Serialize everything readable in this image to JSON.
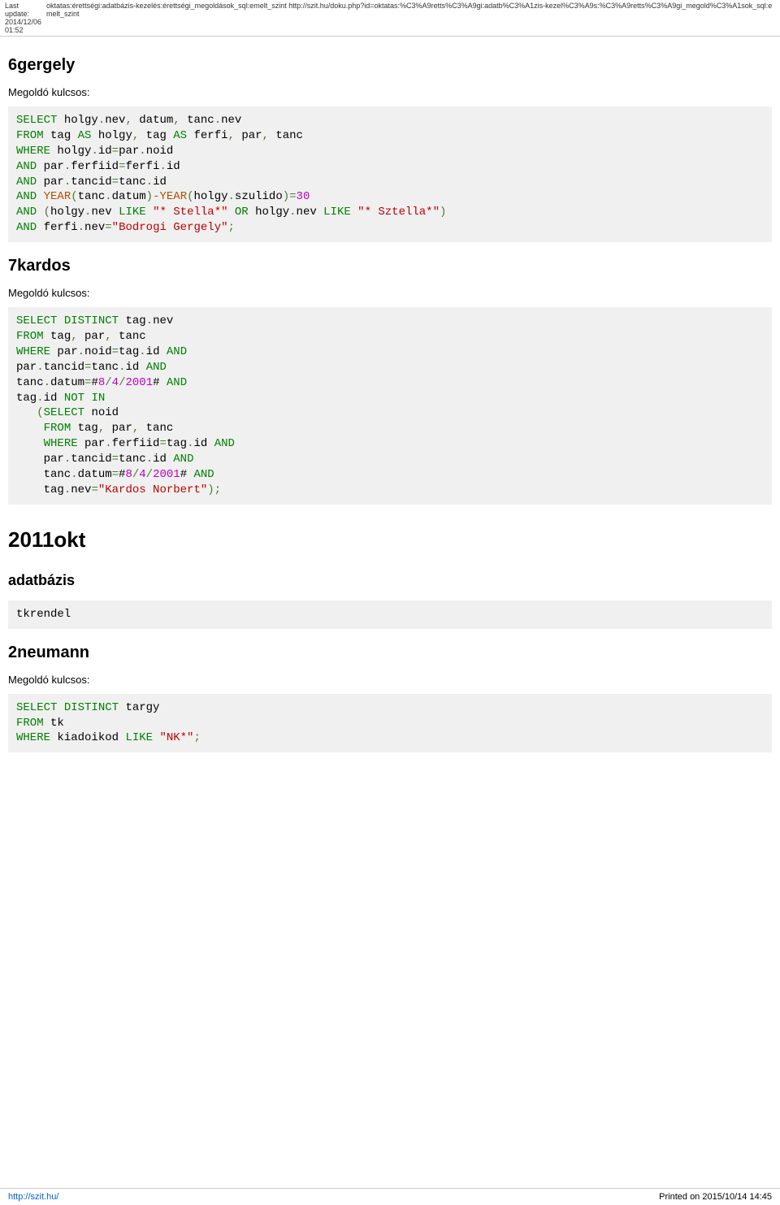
{
  "header": {
    "last_update_label": "Last\nupdate:",
    "last_update_value": "2014/12/06\n01:52",
    "breadcrumb": "oktatas:érettségi:adatbázis-kezelés:érettségi_megoldások_sql:emelt_szint http://szit.hu/doku.php?id=oktatas:%C3%A9retts%C3%A9gi:adatb%C3%A1zis-kezel%C3%A9s:%C3%A9retts%C3%A9gi_megold%C3%A1sok_sql:emelt_szint"
  },
  "sections": {
    "s1": {
      "title": "6gergely",
      "subtitle": "Megoldó kulcsos:"
    },
    "s2": {
      "title": "7kardos",
      "subtitle": "Megoldó kulcsos:"
    },
    "s3": {
      "title": "2011okt"
    },
    "s4": {
      "title": "adatbázis",
      "subsection": "tkrendel"
    },
    "s5": {
      "title": "2neumann",
      "subtitle": "Megoldó kulcsos:"
    }
  },
  "code": {
    "c1": {
      "tokens": [
        [
          "k-select",
          "SELECT"
        ],
        [
          "ident",
          " holgy"
        ],
        [
          "punct",
          "."
        ],
        [
          "ident",
          "nev"
        ],
        [
          "punct",
          ","
        ],
        [
          "ident",
          " datum"
        ],
        [
          "punct",
          ","
        ],
        [
          "ident",
          " tanc"
        ],
        [
          "punct",
          "."
        ],
        [
          "ident",
          "nev"
        ],
        [
          "nl",
          ""
        ],
        [
          "k-from",
          "FROM"
        ],
        [
          "ident",
          " tag "
        ],
        [
          "k-as",
          "AS"
        ],
        [
          "ident",
          " holgy"
        ],
        [
          "punct",
          ","
        ],
        [
          "ident",
          " tag "
        ],
        [
          "k-as",
          "AS"
        ],
        [
          "ident",
          " ferfi"
        ],
        [
          "punct",
          ","
        ],
        [
          "ident",
          " par"
        ],
        [
          "punct",
          ","
        ],
        [
          "ident",
          " tanc"
        ],
        [
          "nl",
          ""
        ],
        [
          "k-where",
          "WHERE"
        ],
        [
          "ident",
          " holgy"
        ],
        [
          "punct",
          "."
        ],
        [
          "ident",
          "id"
        ],
        [
          "op",
          "="
        ],
        [
          "ident",
          "par"
        ],
        [
          "punct",
          "."
        ],
        [
          "ident",
          "noid"
        ],
        [
          "nl",
          ""
        ],
        [
          "k-and",
          "AND"
        ],
        [
          "ident",
          " par"
        ],
        [
          "punct",
          "."
        ],
        [
          "ident",
          "ferfiid"
        ],
        [
          "op",
          "="
        ],
        [
          "ident",
          "ferfi"
        ],
        [
          "punct",
          "."
        ],
        [
          "ident",
          "id"
        ],
        [
          "nl",
          ""
        ],
        [
          "k-and",
          "AND"
        ],
        [
          "ident",
          " par"
        ],
        [
          "punct",
          "."
        ],
        [
          "ident",
          "tancid"
        ],
        [
          "op",
          "="
        ],
        [
          "ident",
          "tanc"
        ],
        [
          "punct",
          "."
        ],
        [
          "ident",
          "id"
        ],
        [
          "nl",
          ""
        ],
        [
          "k-and",
          "AND"
        ],
        [
          "ident",
          " "
        ],
        [
          "fn",
          "YEAR"
        ],
        [
          "punct",
          "("
        ],
        [
          "ident",
          "tanc"
        ],
        [
          "punct",
          "."
        ],
        [
          "ident",
          "datum"
        ],
        [
          "punct",
          ")"
        ],
        [
          "op",
          "-"
        ],
        [
          "fn",
          "YEAR"
        ],
        [
          "punct",
          "("
        ],
        [
          "ident",
          "holgy"
        ],
        [
          "punct",
          "."
        ],
        [
          "ident",
          "szulido"
        ],
        [
          "punct",
          ")"
        ],
        [
          "op",
          "="
        ],
        [
          "num",
          "30"
        ],
        [
          "nl",
          ""
        ],
        [
          "k-and",
          "AND"
        ],
        [
          "ident",
          " "
        ],
        [
          "punct",
          "("
        ],
        [
          "ident",
          "holgy"
        ],
        [
          "punct",
          "."
        ],
        [
          "ident",
          "nev "
        ],
        [
          "k-like",
          "LIKE"
        ],
        [
          "ident",
          " "
        ],
        [
          "str",
          "\"* Stella*\""
        ],
        [
          "ident",
          " "
        ],
        [
          "k-or",
          "OR"
        ],
        [
          "ident",
          " holgy"
        ],
        [
          "punct",
          "."
        ],
        [
          "ident",
          "nev "
        ],
        [
          "k-like",
          "LIKE"
        ],
        [
          "ident",
          " "
        ],
        [
          "str",
          "\"* Sztella*\""
        ],
        [
          "punct",
          ")"
        ],
        [
          "nl",
          ""
        ],
        [
          "k-and",
          "AND"
        ],
        [
          "ident",
          " ferfi"
        ],
        [
          "punct",
          "."
        ],
        [
          "ident",
          "nev"
        ],
        [
          "op",
          "="
        ],
        [
          "str",
          "\"Bodrogi Gergely\""
        ],
        [
          "punct",
          ";"
        ]
      ]
    },
    "c2": {
      "tokens": [
        [
          "k-select",
          "SELECT"
        ],
        [
          "ident",
          " "
        ],
        [
          "k-distinct",
          "DISTINCT"
        ],
        [
          "ident",
          " tag"
        ],
        [
          "punct",
          "."
        ],
        [
          "ident",
          "nev"
        ],
        [
          "nl",
          ""
        ],
        [
          "k-from",
          "FROM"
        ],
        [
          "ident",
          " tag"
        ],
        [
          "punct",
          ","
        ],
        [
          "ident",
          " par"
        ],
        [
          "punct",
          ","
        ],
        [
          "ident",
          " tanc"
        ],
        [
          "nl",
          ""
        ],
        [
          "k-where",
          "WHERE"
        ],
        [
          "ident",
          " par"
        ],
        [
          "punct",
          "."
        ],
        [
          "ident",
          "noid"
        ],
        [
          "op",
          "="
        ],
        [
          "ident",
          "tag"
        ],
        [
          "punct",
          "."
        ],
        [
          "ident",
          "id "
        ],
        [
          "k-and",
          "AND"
        ],
        [
          "nl",
          ""
        ],
        [
          "ident",
          "par"
        ],
        [
          "punct",
          "."
        ],
        [
          "ident",
          "tancid"
        ],
        [
          "op",
          "="
        ],
        [
          "ident",
          "tanc"
        ],
        [
          "punct",
          "."
        ],
        [
          "ident",
          "id "
        ],
        [
          "k-and",
          "AND"
        ],
        [
          "nl",
          ""
        ],
        [
          "ident",
          "tanc"
        ],
        [
          "punct",
          "."
        ],
        [
          "ident",
          "datum"
        ],
        [
          "op",
          "="
        ],
        [
          "ident",
          "#"
        ],
        [
          "num",
          "8"
        ],
        [
          "op",
          "/"
        ],
        [
          "num",
          "4"
        ],
        [
          "op",
          "/"
        ],
        [
          "num",
          "2001"
        ],
        [
          "ident",
          "# "
        ],
        [
          "k-and",
          "AND"
        ],
        [
          "nl",
          ""
        ],
        [
          "ident",
          "tag"
        ],
        [
          "punct",
          "."
        ],
        [
          "ident",
          "id "
        ],
        [
          "k-notin",
          "NOT IN"
        ],
        [
          "nl",
          ""
        ],
        [
          "ident",
          "   "
        ],
        [
          "punct",
          "("
        ],
        [
          "k-select",
          "SELECT"
        ],
        [
          "ident",
          " noid"
        ],
        [
          "nl",
          ""
        ],
        [
          "ident",
          "    "
        ],
        [
          "k-from",
          "FROM"
        ],
        [
          "ident",
          " tag"
        ],
        [
          "punct",
          ","
        ],
        [
          "ident",
          " par"
        ],
        [
          "punct",
          ","
        ],
        [
          "ident",
          " tanc"
        ],
        [
          "nl",
          ""
        ],
        [
          "ident",
          "    "
        ],
        [
          "k-where",
          "WHERE"
        ],
        [
          "ident",
          " par"
        ],
        [
          "punct",
          "."
        ],
        [
          "ident",
          "ferfiid"
        ],
        [
          "op",
          "="
        ],
        [
          "ident",
          "tag"
        ],
        [
          "punct",
          "."
        ],
        [
          "ident",
          "id "
        ],
        [
          "k-and",
          "AND"
        ],
        [
          "nl",
          ""
        ],
        [
          "ident",
          "    par"
        ],
        [
          "punct",
          "."
        ],
        [
          "ident",
          "tancid"
        ],
        [
          "op",
          "="
        ],
        [
          "ident",
          "tanc"
        ],
        [
          "punct",
          "."
        ],
        [
          "ident",
          "id "
        ],
        [
          "k-and",
          "AND"
        ],
        [
          "nl",
          ""
        ],
        [
          "ident",
          "    tanc"
        ],
        [
          "punct",
          "."
        ],
        [
          "ident",
          "datum"
        ],
        [
          "op",
          "="
        ],
        [
          "ident",
          "#"
        ],
        [
          "num",
          "8"
        ],
        [
          "op",
          "/"
        ],
        [
          "num",
          "4"
        ],
        [
          "op",
          "/"
        ],
        [
          "num",
          "2001"
        ],
        [
          "ident",
          "# "
        ],
        [
          "k-and",
          "AND"
        ],
        [
          "nl",
          ""
        ],
        [
          "ident",
          "    tag"
        ],
        [
          "punct",
          "."
        ],
        [
          "ident",
          "nev"
        ],
        [
          "op",
          "="
        ],
        [
          "str",
          "\"Kardos Norbert\""
        ],
        [
          "punct",
          ")"
        ],
        [
          "punct",
          ";"
        ]
      ]
    },
    "c3": {
      "tokens": [
        [
          "k-select",
          "SELECT"
        ],
        [
          "ident",
          " "
        ],
        [
          "k-distinct",
          "DISTINCT"
        ],
        [
          "ident",
          " targy"
        ],
        [
          "nl",
          ""
        ],
        [
          "k-from",
          "FROM"
        ],
        [
          "ident",
          " tk"
        ],
        [
          "nl",
          ""
        ],
        [
          "k-where",
          "WHERE"
        ],
        [
          "ident",
          " kiadoikod "
        ],
        [
          "k-like",
          "LIKE"
        ],
        [
          "ident",
          " "
        ],
        [
          "str",
          "\"NK*\""
        ],
        [
          "punct",
          ";"
        ]
      ]
    }
  },
  "footer": {
    "url": "http://szit.hu/",
    "printed": "Printed on 2015/10/14 14:45"
  }
}
